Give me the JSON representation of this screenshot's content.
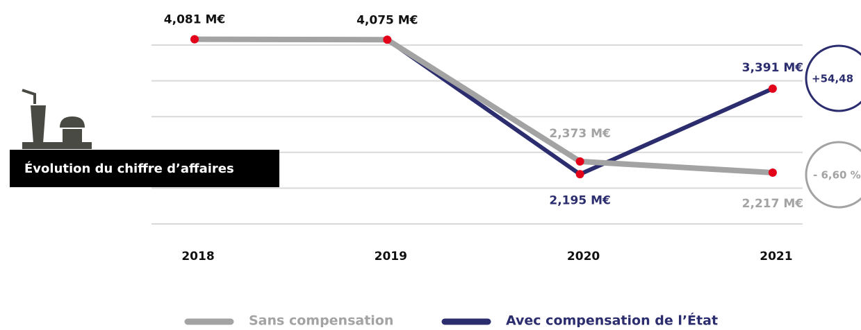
{
  "chart_data": {
    "type": "line",
    "title": "Évolution du chiffre d’affaires",
    "categories": [
      "2018",
      "2019",
      "2020",
      "2021"
    ],
    "series": [
      {
        "name": "Avec compensation de l’État",
        "color": "#2b2d6e",
        "values": [
          4.081,
          4.075,
          2.195,
          3.391
        ],
        "value_labels": [
          null,
          null,
          "2,195 M€",
          "3,391 M€"
        ]
      },
      {
        "name": "Sans compensation",
        "color": "#a3a3a3",
        "values": [
          4.081,
          4.075,
          2.373,
          2.217
        ],
        "value_labels": [
          "4,081 M€",
          "4,075 M€",
          "2,373 M€",
          "2,217 M€"
        ]
      }
    ],
    "marker_color": "#e2001a",
    "ylim": [
      1.5,
      4
    ],
    "yticks": [
      1.5,
      2,
      2.5,
      3,
      3.5,
      4
    ],
    "grid": true,
    "annotations": [
      "+54,48",
      "- 6,60 %"
    ]
  }
}
